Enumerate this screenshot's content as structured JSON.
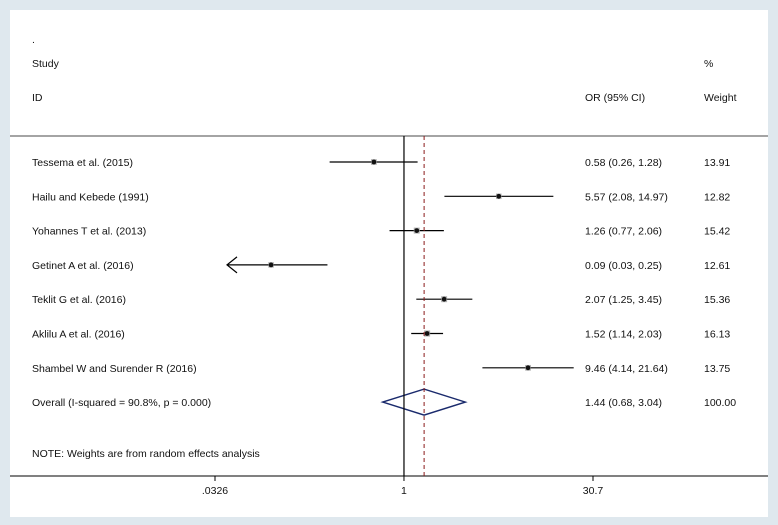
{
  "chart_data": {
    "type": "forest",
    "title": "",
    "dot_mark": ".",
    "headers": {
      "study": "Study",
      "id": "ID",
      "or": "OR (95% CI)",
      "pct": "%",
      "weight": "Weight"
    },
    "scale": "log",
    "null_line": 1,
    "xticks": [
      {
        "value": 0.0326,
        "label": ".0326"
      },
      {
        "value": 1,
        "label": "1"
      },
      {
        "value": 30.7,
        "label": "30.7"
      }
    ],
    "xlim": [
      0.0326,
      30.7
    ],
    "studies": [
      {
        "label": "Tessema et al. (2015)",
        "or": 0.58,
        "lo": 0.26,
        "hi": 1.28,
        "ci_text": "0.58 (0.26, 1.28)",
        "weight": "13.91",
        "weight_value": 13.91,
        "arrow_left": false
      },
      {
        "label": "Hailu and Kebede  (1991)",
        "or": 5.57,
        "lo": 2.08,
        "hi": 14.97,
        "ci_text": "5.57 (2.08, 14.97)",
        "weight": "12.82",
        "weight_value": 12.82,
        "arrow_left": false
      },
      {
        "label": "Yohannes T et al. (2013)",
        "or": 1.26,
        "lo": 0.77,
        "hi": 2.06,
        "ci_text": "1.26 (0.77, 2.06)",
        "weight": "15.42",
        "weight_value": 15.42,
        "arrow_left": false
      },
      {
        "label": "Getinet A et al. (2016)",
        "or": 0.09,
        "lo": 0.03,
        "hi": 0.25,
        "ci_text": "0.09 (0.03, 0.25)",
        "weight": "12.61",
        "weight_value": 12.61,
        "arrow_left": true
      },
      {
        "label": "Teklit G et al. (2016)",
        "or": 2.07,
        "lo": 1.25,
        "hi": 3.45,
        "ci_text": "2.07 (1.25, 3.45)",
        "weight": "15.36",
        "weight_value": 15.36,
        "arrow_left": false
      },
      {
        "label": "Aklilu A et al. (2016)",
        "or": 1.52,
        "lo": 1.14,
        "hi": 2.03,
        "ci_text": "1.52 (1.14, 2.03)",
        "weight": "16.13",
        "weight_value": 16.13,
        "arrow_left": false
      },
      {
        "label": "Shambel W and Surender R (2016)",
        "or": 9.46,
        "lo": 4.14,
        "hi": 21.64,
        "ci_text": "9.46 (4.14, 21.64)",
        "weight": "13.75",
        "weight_value": 13.75,
        "arrow_left": false
      }
    ],
    "overall": {
      "label": "Overall  (I-squared = 90.8%, p = 0.000)",
      "or": 1.44,
      "lo": 0.68,
      "hi": 3.04,
      "ci_text": "1.44 (0.68, 3.04)",
      "weight": "100.00"
    },
    "note": "NOTE: Weights are from random effects analysis",
    "colors": {
      "background": "#dfe8ee",
      "plot": "#ffffff",
      "line": "#000000",
      "pooled_line": "#8b1a1a",
      "diamond": "#1a2a6c",
      "box": "#b0b0b0"
    }
  }
}
